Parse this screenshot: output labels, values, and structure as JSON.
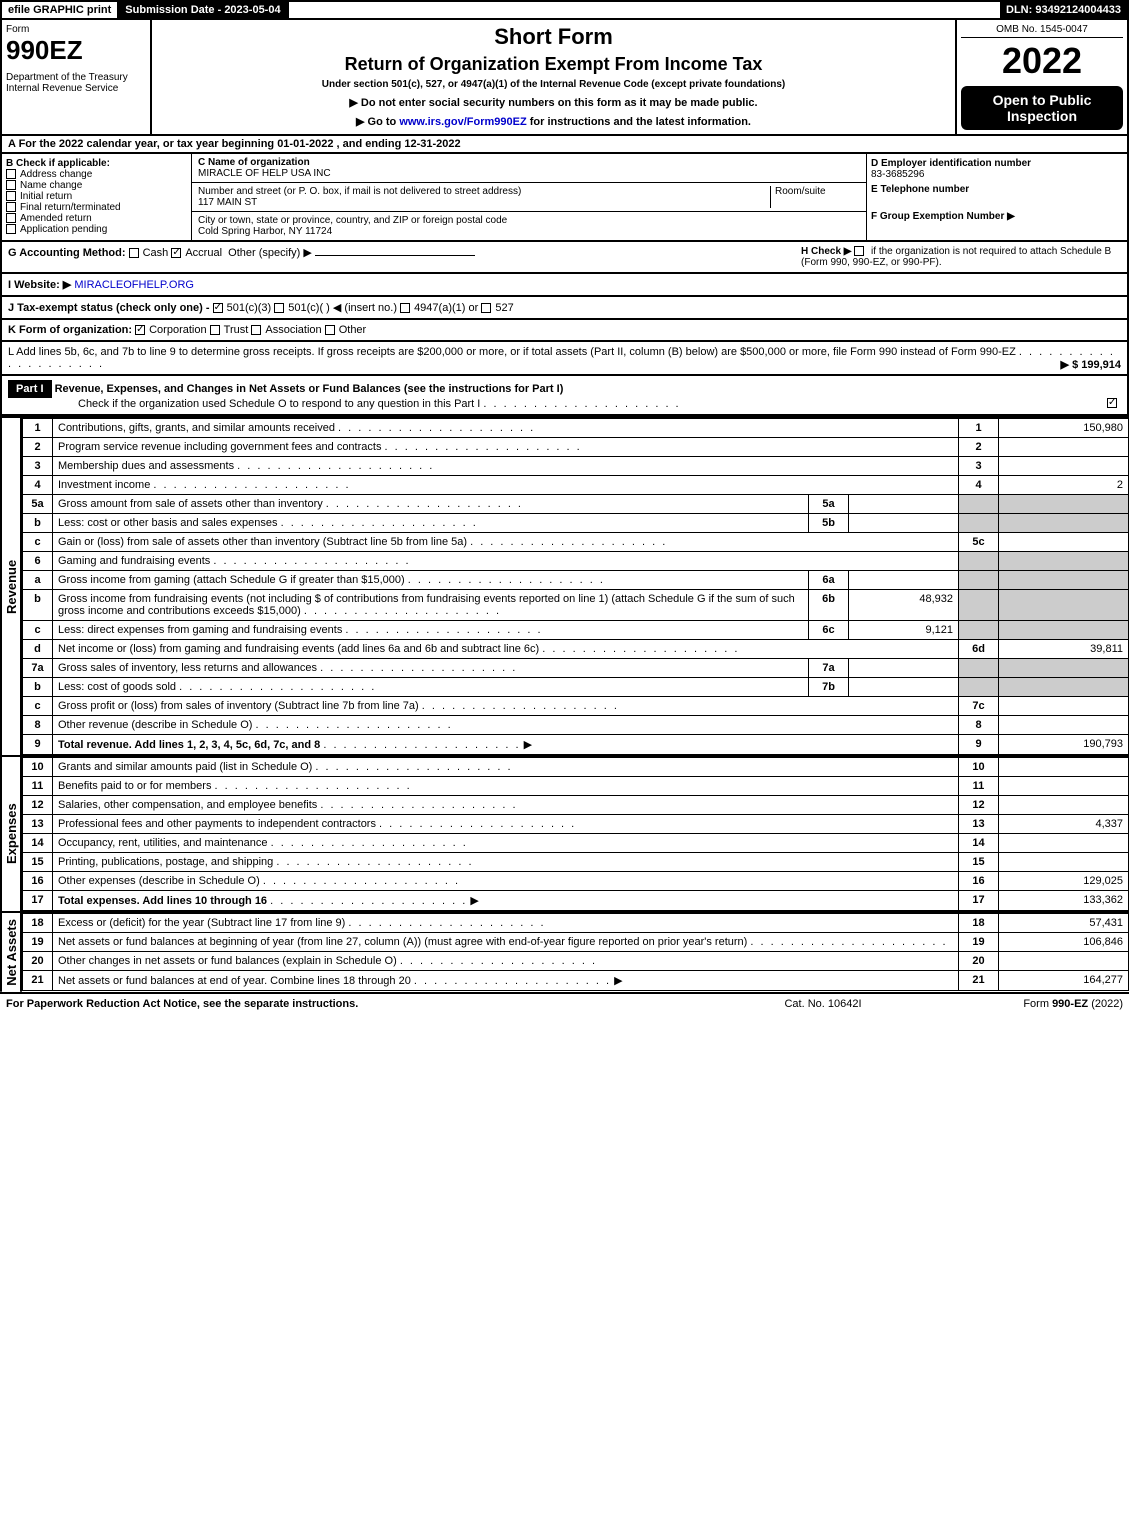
{
  "topbar": {
    "efile": "efile GRAPHIC print",
    "submission": "Submission Date - 2023-05-04",
    "dln": "DLN: 93492124004433"
  },
  "header": {
    "form_label": "Form",
    "form_number": "990EZ",
    "dept": "Department of the Treasury\nInternal Revenue Service",
    "short_form": "Short Form",
    "return_title": "Return of Organization Exempt From Income Tax",
    "under_section": "Under section 501(c), 527, or 4947(a)(1) of the Internal Revenue Code (except private foundations)",
    "no_ssn": "▶ Do not enter social security numbers on this form as it may be made public.",
    "goto": "▶ Go to www.irs.gov/Form990EZ for instructions and the latest information.",
    "goto_url": "www.irs.gov/Form990EZ",
    "omb": "OMB No. 1545-0047",
    "year": "2022",
    "open_public": "Open to Public Inspection"
  },
  "section_a": "A  For the 2022 calendar year, or tax year beginning 01-01-2022 , and ending 12-31-2022",
  "col_b": {
    "title": "B  Check if applicable:",
    "items": [
      "Address change",
      "Name change",
      "Initial return",
      "Final return/terminated",
      "Amended return",
      "Application pending"
    ]
  },
  "col_c": {
    "name_label": "C Name of organization",
    "name": "MIRACLE OF HELP USA INC",
    "street_label": "Number and street (or P. O. box, if mail is not delivered to street address)",
    "room_label": "Room/suite",
    "street": "117 MAIN ST",
    "city_label": "City or town, state or province, country, and ZIP or foreign postal code",
    "city": "Cold Spring Harbor, NY  11724"
  },
  "col_d": {
    "ein_label": "D Employer identification number",
    "ein": "83-3685296",
    "tel_label": "E Telephone number",
    "group_label": "F Group Exemption Number   ▶"
  },
  "row_g": {
    "label": "G Accounting Method:",
    "cash": "Cash",
    "accrual": "Accrual",
    "other": "Other (specify) ▶",
    "h_label": "H  Check ▶",
    "h_text": "if the organization is not required to attach Schedule B (Form 990, 990-EZ, or 990-PF)."
  },
  "row_i": {
    "label": "I Website: ▶",
    "value": "MIRACLEOFHELP.ORG"
  },
  "row_j": {
    "label": "J Tax-exempt status (check only one) -",
    "opt1": "501(c)(3)",
    "opt2": "501(c)(  ) ◀ (insert no.)",
    "opt3": "4947(a)(1) or",
    "opt4": "527"
  },
  "row_k": {
    "label": "K Form of organization:",
    "opts": [
      "Corporation",
      "Trust",
      "Association",
      "Other"
    ]
  },
  "row_l": {
    "text": "L Add lines 5b, 6c, and 7b to line 9 to determine gross receipts. If gross receipts are $200,000 or more, or if total assets (Part II, column (B) below) are $500,000 or more, file Form 990 instead of Form 990-EZ",
    "amount": "▶ $ 199,914"
  },
  "part1": {
    "header": "Part I",
    "title": "Revenue, Expenses, and Changes in Net Assets or Fund Balances (see the instructions for Part I)",
    "check_line": "Check if the organization used Schedule O to respond to any question in this Part I"
  },
  "revenue_lines": [
    {
      "n": "1",
      "desc": "Contributions, gifts, grants, and similar amounts received",
      "rnum": "1",
      "amt": "150,980"
    },
    {
      "n": "2",
      "desc": "Program service revenue including government fees and contracts",
      "rnum": "2",
      "amt": ""
    },
    {
      "n": "3",
      "desc": "Membership dues and assessments",
      "rnum": "3",
      "amt": ""
    },
    {
      "n": "4",
      "desc": "Investment income",
      "rnum": "4",
      "amt": "2"
    },
    {
      "n": "5a",
      "desc": "Gross amount from sale of assets other than inventory",
      "sub": "5a",
      "subval": "",
      "shaded": true
    },
    {
      "n": "b",
      "desc": "Less: cost or other basis and sales expenses",
      "sub": "5b",
      "subval": "",
      "shaded": true
    },
    {
      "n": "c",
      "desc": "Gain or (loss) from sale of assets other than inventory (Subtract line 5b from line 5a)",
      "rnum": "5c",
      "amt": ""
    },
    {
      "n": "6",
      "desc": "Gaming and fundraising events",
      "shaded": true,
      "noright": true
    },
    {
      "n": "a",
      "desc": "Gross income from gaming (attach Schedule G if greater than $15,000)",
      "sub": "6a",
      "subval": "",
      "shaded": true
    },
    {
      "n": "b",
      "desc": "Gross income from fundraising events (not including $                    of contributions from fundraising events reported on line 1) (attach Schedule G if the sum of such gross income and contributions exceeds $15,000)",
      "sub": "6b",
      "subval": "48,932",
      "shaded": true
    },
    {
      "n": "c",
      "desc": "Less: direct expenses from gaming and fundraising events",
      "sub": "6c",
      "subval": "9,121",
      "shaded": true
    },
    {
      "n": "d",
      "desc": "Net income or (loss) from gaming and fundraising events (add lines 6a and 6b and subtract line 6c)",
      "rnum": "6d",
      "amt": "39,811"
    },
    {
      "n": "7a",
      "desc": "Gross sales of inventory, less returns and allowances",
      "sub": "7a",
      "subval": "",
      "shaded": true
    },
    {
      "n": "b",
      "desc": "Less: cost of goods sold",
      "sub": "7b",
      "subval": "",
      "shaded": true
    },
    {
      "n": "c",
      "desc": "Gross profit or (loss) from sales of inventory (Subtract line 7b from line 7a)",
      "rnum": "7c",
      "amt": ""
    },
    {
      "n": "8",
      "desc": "Other revenue (describe in Schedule O)",
      "rnum": "8",
      "amt": ""
    },
    {
      "n": "9",
      "desc": "Total revenue. Add lines 1, 2, 3, 4, 5c, 6d, 7c, and 8",
      "rnum": "9",
      "amt": "190,793",
      "bold": true,
      "arrow": true
    }
  ],
  "expense_lines": [
    {
      "n": "10",
      "desc": "Grants and similar amounts paid (list in Schedule O)",
      "rnum": "10",
      "amt": ""
    },
    {
      "n": "11",
      "desc": "Benefits paid to or for members",
      "rnum": "11",
      "amt": ""
    },
    {
      "n": "12",
      "desc": "Salaries, other compensation, and employee benefits",
      "rnum": "12",
      "amt": ""
    },
    {
      "n": "13",
      "desc": "Professional fees and other payments to independent contractors",
      "rnum": "13",
      "amt": "4,337"
    },
    {
      "n": "14",
      "desc": "Occupancy, rent, utilities, and maintenance",
      "rnum": "14",
      "amt": ""
    },
    {
      "n": "15",
      "desc": "Printing, publications, postage, and shipping",
      "rnum": "15",
      "amt": ""
    },
    {
      "n": "16",
      "desc": "Other expenses (describe in Schedule O)",
      "rnum": "16",
      "amt": "129,025"
    },
    {
      "n": "17",
      "desc": "Total expenses. Add lines 10 through 16",
      "rnum": "17",
      "amt": "133,362",
      "bold": true,
      "arrow": true
    }
  ],
  "netassets_lines": [
    {
      "n": "18",
      "desc": "Excess or (deficit) for the year (Subtract line 17 from line 9)",
      "rnum": "18",
      "amt": "57,431"
    },
    {
      "n": "19",
      "desc": "Net assets or fund balances at beginning of year (from line 27, column (A)) (must agree with end-of-year figure reported on prior year's return)",
      "rnum": "19",
      "amt": "106,846"
    },
    {
      "n": "20",
      "desc": "Other changes in net assets or fund balances (explain in Schedule O)",
      "rnum": "20",
      "amt": ""
    },
    {
      "n": "21",
      "desc": "Net assets or fund balances at end of year. Combine lines 18 through 20",
      "rnum": "21",
      "amt": "164,277",
      "arrow": true
    }
  ],
  "side_labels": {
    "revenue": "Revenue",
    "expenses": "Expenses",
    "netassets": "Net Assets"
  },
  "footer": {
    "left": "For Paperwork Reduction Act Notice, see the separate instructions.",
    "mid": "Cat. No. 10642I",
    "right_prefix": "Form ",
    "right_form": "990-EZ",
    "right_suffix": " (2022)"
  },
  "colors": {
    "black": "#000000",
    "shade": "#cccccc",
    "link": "#0000cc"
  }
}
